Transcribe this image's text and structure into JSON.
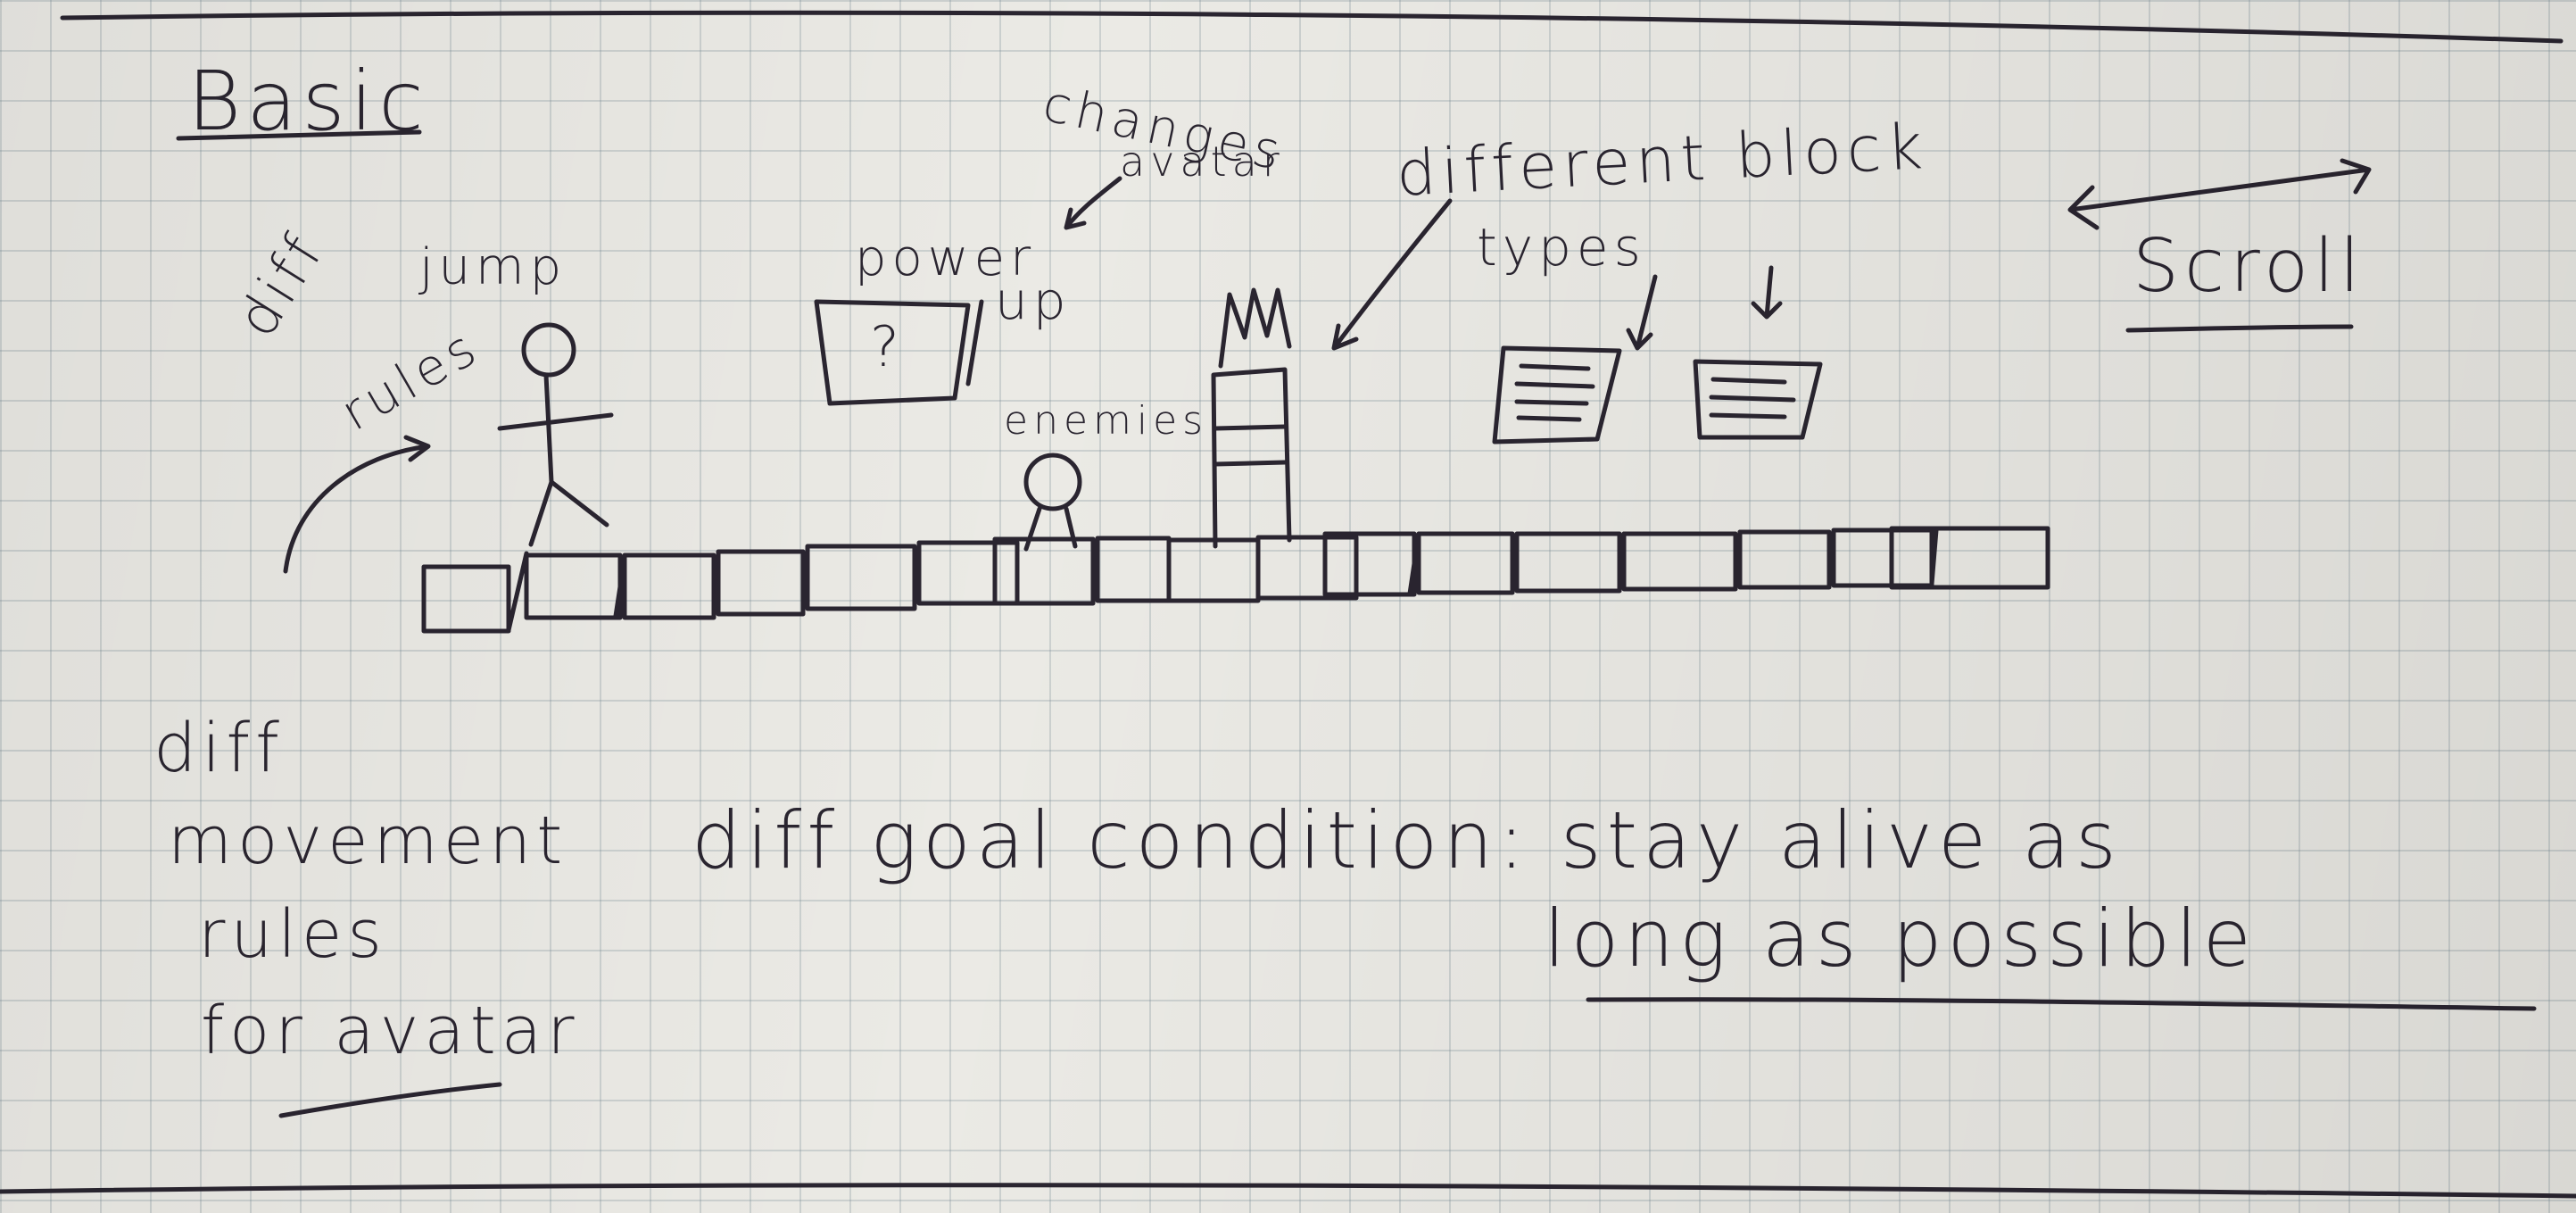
{
  "labels": {
    "basic": "Basic",
    "changes": "changes",
    "avatar_top": "avatar",
    "different_block": "different block",
    "types": "types",
    "scroll": "Scroll",
    "power_up_1": "power",
    "power_up_2": "up",
    "question_mark": "?",
    "diff_jump_1": "diff",
    "diff_jump_2": "jump",
    "diff_jump_3": "rules",
    "enemies": "enemies",
    "diff_movement_1": "diff",
    "diff_movement_2": "movement",
    "diff_movement_3": "rules",
    "diff_movement_4": "for avatar",
    "goal_1": "diff goal condition: stay alive as",
    "goal_2": "long as possible"
  }
}
